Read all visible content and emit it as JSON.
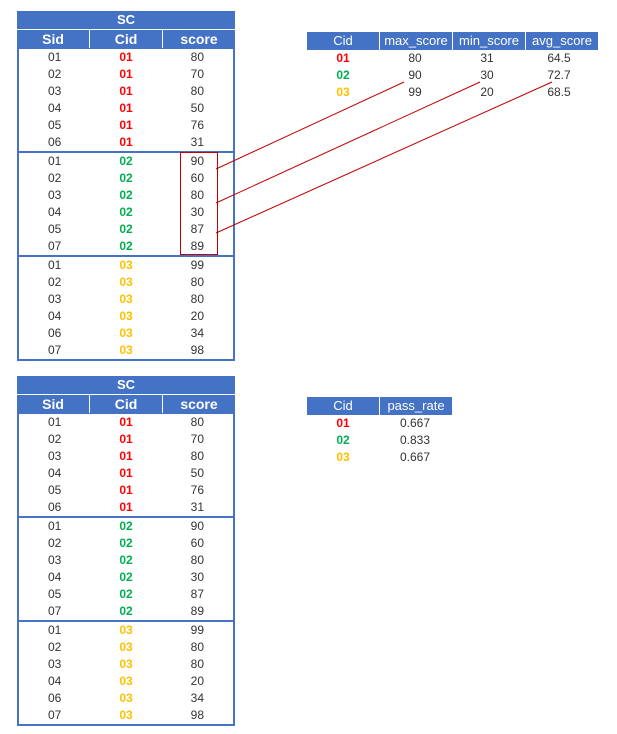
{
  "sc_title": "SC",
  "sc_columns": [
    "Sid",
    "Cid",
    "score"
  ],
  "sc_groups": [
    {
      "cid": "01",
      "rows": [
        [
          "01",
          "80"
        ],
        [
          "02",
          "70"
        ],
        [
          "03",
          "80"
        ],
        [
          "04",
          "50"
        ],
        [
          "05",
          "76"
        ],
        [
          "06",
          "31"
        ]
      ]
    },
    {
      "cid": "02",
      "rows": [
        [
          "01",
          "90"
        ],
        [
          "02",
          "60"
        ],
        [
          "03",
          "80"
        ],
        [
          "04",
          "30"
        ],
        [
          "05",
          "87"
        ],
        [
          "07",
          "89"
        ]
      ]
    },
    {
      "cid": "03",
      "rows": [
        [
          "01",
          "99"
        ],
        [
          "02",
          "80"
        ],
        [
          "03",
          "80"
        ],
        [
          "04",
          "20"
        ],
        [
          "06",
          "34"
        ],
        [
          "07",
          "98"
        ]
      ]
    }
  ],
  "stats_table": {
    "columns": [
      "Cid",
      "max_score",
      "min_score",
      "avg_score"
    ],
    "rows": [
      [
        "01",
        "80",
        "31",
        "64.5"
      ],
      [
        "02",
        "90",
        "30",
        "72.7"
      ],
      [
        "03",
        "99",
        "20",
        "68.5"
      ]
    ]
  },
  "pass_table": {
    "columns": [
      "Cid",
      "pass_rate"
    ],
    "rows": [
      [
        "01",
        "0.667"
      ],
      [
        "02",
        "0.833"
      ],
      [
        "03",
        "0.667"
      ]
    ]
  },
  "colors": {
    "header": "#4472c4",
    "cid_01": "#ff0000",
    "cid_02": "#00b050",
    "cid_03": "#ffc000",
    "connector": "#c00000"
  }
}
